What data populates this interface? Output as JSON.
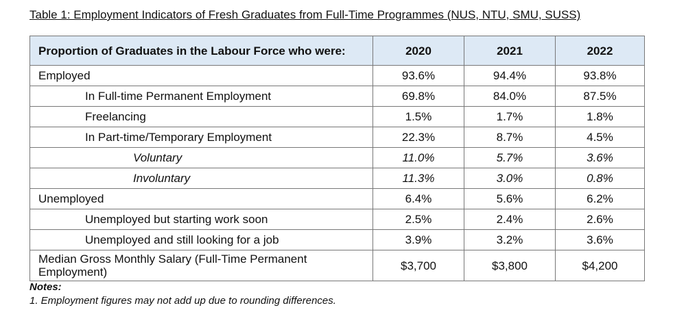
{
  "title": "Table 1: Employment Indicators of Fresh Graduates from Full-Time Programmes (NUS, NTU, SMU, SUSS)",
  "header": {
    "label": "Proportion of Graduates in the Labour Force who were:",
    "years": [
      "2020",
      "2021",
      "2022"
    ]
  },
  "rows": [
    {
      "label": "Employed",
      "level": 0,
      "values": [
        "93.6%",
        "94.4%",
        "93.8%"
      ]
    },
    {
      "label": "In Full-time Permanent Employment",
      "level": 1,
      "values": [
        "69.8%",
        "84.0%",
        "87.5%"
      ]
    },
    {
      "label": "Freelancing",
      "level": 1,
      "values": [
        "1.5%",
        "1.7%",
        "1.8%"
      ]
    },
    {
      "label": "In Part-time/Temporary Employment",
      "level": 1,
      "values": [
        "22.3%",
        "8.7%",
        "4.5%"
      ]
    },
    {
      "label": "Voluntary",
      "level": 2,
      "values": [
        "11.0%",
        "5.7%",
        "3.6%"
      ]
    },
    {
      "label": "Involuntary",
      "level": 2,
      "values": [
        "11.3%",
        "3.0%",
        "0.8%"
      ]
    },
    {
      "label": "Unemployed",
      "level": 0,
      "values": [
        "6.4%",
        "5.6%",
        "6.2%"
      ]
    },
    {
      "label": "Unemployed but starting work soon",
      "level": 1,
      "values": [
        "2.5%",
        "2.4%",
        "2.6%"
      ]
    },
    {
      "label": "Unemployed and still looking for a job",
      "level": 1,
      "values": [
        "3.9%",
        "3.2%",
        "3.6%"
      ]
    },
    {
      "label": "Median Gross Monthly Salary (Full-Time Permanent Employment)",
      "level": 0,
      "values": [
        "$3,700",
        "$3,800",
        "$4,200"
      ]
    }
  ],
  "notes": {
    "heading": "Notes:",
    "items": [
      "1. Employment figures may not add up due to rounding differences."
    ]
  }
}
